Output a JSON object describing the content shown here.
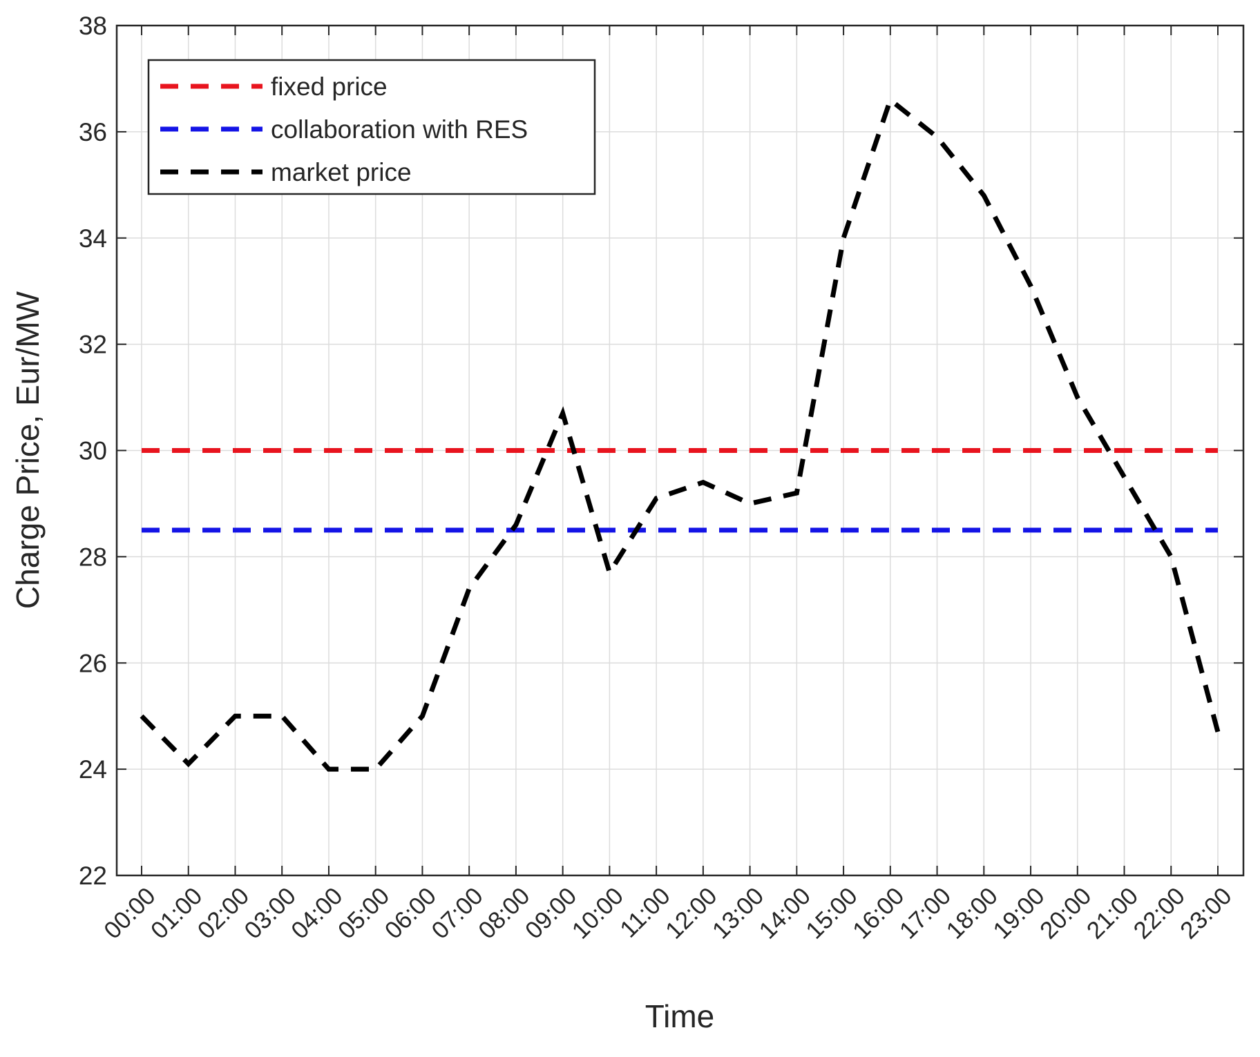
{
  "chart_data": {
    "type": "line",
    "x_label": "Time",
    "y_label": "Charge Price, Eur/MW",
    "categories": [
      "00:00",
      "01:00",
      "02:00",
      "03:00",
      "04:00",
      "05:00",
      "06:00",
      "07:00",
      "08:00",
      "09:00",
      "10:00",
      "11:00",
      "12:00",
      "13:00",
      "14:00",
      "15:00",
      "16:00",
      "17:00",
      "18:00",
      "19:00",
      "20:00",
      "21:00",
      "22:00",
      "23:00"
    ],
    "series": [
      {
        "name": "fixed price",
        "color": "#e8141e",
        "values": [
          30,
          30,
          30,
          30,
          30,
          30,
          30,
          30,
          30,
          30,
          30,
          30,
          30,
          30,
          30,
          30,
          30,
          30,
          30,
          30,
          30,
          30,
          30,
          30
        ]
      },
      {
        "name": "collaboration with RES",
        "color": "#1414e6",
        "values": [
          28.5,
          28.5,
          28.5,
          28.5,
          28.5,
          28.5,
          28.5,
          28.5,
          28.5,
          28.5,
          28.5,
          28.5,
          28.5,
          28.5,
          28.5,
          28.5,
          28.5,
          28.5,
          28.5,
          28.5,
          28.5,
          28.5,
          28.5,
          28.5
        ]
      },
      {
        "name": "market price",
        "color": "#000000",
        "values": [
          25,
          24.1,
          25,
          25,
          24,
          24,
          25,
          27.4,
          28.6,
          30.7,
          27.7,
          29.1,
          29.4,
          29,
          29.2,
          34,
          36.6,
          35.9,
          34.8,
          33.1,
          31,
          29.5,
          28,
          24.7
        ]
      }
    ],
    "ylim": [
      22,
      38
    ],
    "yticks": [
      22,
      24,
      26,
      28,
      30,
      32,
      34,
      36,
      38
    ],
    "grid": true,
    "legend": "upper left"
  }
}
